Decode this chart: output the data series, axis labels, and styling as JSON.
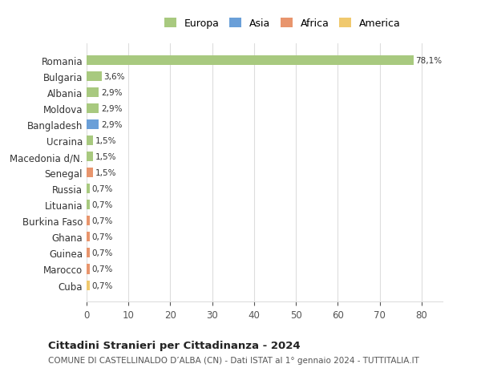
{
  "categories": [
    "Romania",
    "Bulgaria",
    "Albania",
    "Moldova",
    "Bangladesh",
    "Ucraina",
    "Macedonia d/N.",
    "Senegal",
    "Russia",
    "Lituania",
    "Burkina Faso",
    "Ghana",
    "Guinea",
    "Marocco",
    "Cuba"
  ],
  "values": [
    78.1,
    3.6,
    2.9,
    2.9,
    2.9,
    1.5,
    1.5,
    1.5,
    0.7,
    0.7,
    0.7,
    0.7,
    0.7,
    0.7,
    0.7
  ],
  "labels": [
    "78,1%",
    "3,6%",
    "2,9%",
    "2,9%",
    "2,9%",
    "1,5%",
    "1,5%",
    "1,5%",
    "0,7%",
    "0,7%",
    "0,7%",
    "0,7%",
    "0,7%",
    "0,7%",
    "0,7%"
  ],
  "colors": [
    "#a8c97f",
    "#a8c97f",
    "#a8c97f",
    "#a8c97f",
    "#6a9fd8",
    "#a8c97f",
    "#a8c97f",
    "#e8956d",
    "#a8c97f",
    "#a8c97f",
    "#e8956d",
    "#e8956d",
    "#e8956d",
    "#e8956d",
    "#f0c96e"
  ],
  "legend_labels": [
    "Europa",
    "Asia",
    "Africa",
    "America"
  ],
  "legend_colors": [
    "#a8c97f",
    "#6a9fd8",
    "#e8956d",
    "#f0c96e"
  ],
  "title": "Cittadini Stranieri per Cittadinanza - 2024",
  "subtitle": "COMUNE DI CASTELLINALDO D’ALBA (CN) - Dati ISTAT al 1° gennaio 2024 - TUTTITALIA.IT",
  "xlim": [
    0,
    85
  ],
  "xticks": [
    0,
    10,
    20,
    30,
    40,
    50,
    60,
    70,
    80
  ],
  "bg_color": "#ffffff",
  "grid_color": "#dddddd",
  "bar_height": 0.6
}
